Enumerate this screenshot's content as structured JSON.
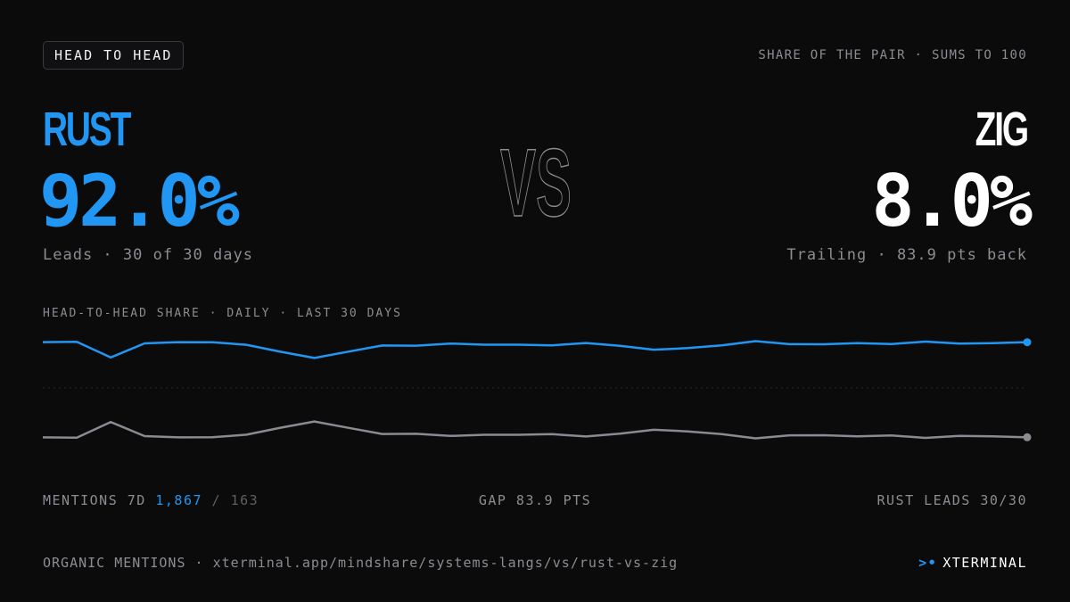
{
  "header": {
    "badge": "HEAD TO HEAD",
    "note": "SHARE OF THE PAIR · SUMS TO 100"
  },
  "left": {
    "name": "RUST",
    "percent": "92.0%",
    "subtitle": "Leads · 30 of 30 days",
    "color": "#2196f3"
  },
  "right": {
    "name": "ZIG",
    "percent": "8.0%",
    "subtitle": "Trailing · 83.9 pts back",
    "color": "#ffffff"
  },
  "vs_label": "VS",
  "chart_title": "HEAD-TO-HEAD SHARE · DAILY · LAST 30 DAYS",
  "chart_data": {
    "type": "line",
    "x": [
      1,
      2,
      3,
      4,
      5,
      6,
      7,
      8,
      9,
      10,
      11,
      12,
      13,
      14,
      15,
      16,
      17,
      18,
      19,
      20,
      21,
      22,
      23,
      24,
      25,
      26,
      27,
      28,
      29,
      30
    ],
    "grid": false,
    "series": [
      {
        "color": "#2196f3",
        "values": [
          94.5,
          94.8,
          80.2,
          93.3,
          94.5,
          94.4,
          92.0,
          85.5,
          79.7,
          85.6,
          91.3,
          91.2,
          93.2,
          92.1,
          92.1,
          91.5,
          93.7,
          91.0,
          87.4,
          88.9,
          91.4,
          95.4,
          92.6,
          92.5,
          93.5,
          92.7,
          95.0,
          93.1,
          93.6,
          94.4
        ]
      },
      {
        "color": "#8a8a90",
        "values": [
          5.5,
          5.2,
          19.8,
          6.7,
          5.5,
          5.6,
          8.0,
          14.5,
          20.3,
          14.4,
          8.7,
          8.8,
          6.8,
          7.9,
          7.9,
          8.5,
          6.3,
          9.0,
          12.6,
          11.1,
          8.6,
          4.6,
          7.4,
          7.5,
          6.5,
          7.3,
          5.0,
          6.9,
          6.4,
          5.6
        ]
      }
    ],
    "reference_line": 50
  },
  "stats": {
    "mentions_label": "MENTIONS 7D",
    "mentions_a": "1,867",
    "mentions_sep": " / ",
    "mentions_b": "163",
    "gap": "GAP 83.9 PTS",
    "leads": "RUST LEADS 30/30"
  },
  "footer": {
    "source": "ORGANIC MENTIONS · xterminal.app/mindshare/systems-langs/vs/rust-vs-zig",
    "brand_mark": ">•",
    "brand": "XTERMINAL"
  }
}
